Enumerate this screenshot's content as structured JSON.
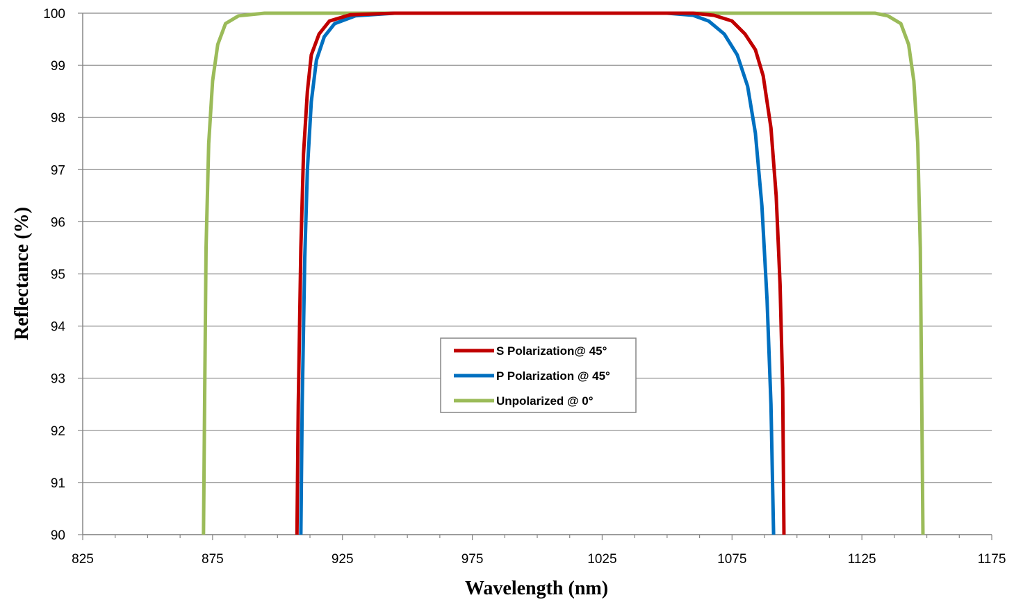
{
  "chart_data": {
    "type": "line",
    "title": "",
    "xlabel": "Wavelength (nm)",
    "ylabel": "Reflectance (%)",
    "xlim": [
      825,
      1175
    ],
    "ylim": [
      90,
      100
    ],
    "x_ticks": [
      "825",
      "875",
      "925",
      "975",
      "1025",
      "1075",
      "1125",
      "1175"
    ],
    "y_ticks": [
      "90",
      "91",
      "92",
      "93",
      "94",
      "95",
      "96",
      "97",
      "98",
      "99",
      "100"
    ],
    "grid": "horizontal",
    "legend_position": "center",
    "series": [
      {
        "name": "S Polarization@ 45°",
        "color": "#c00000",
        "points": [
          [
            907.5,
            90
          ],
          [
            908,
            92.5
          ],
          [
            909,
            95.5
          ],
          [
            910,
            97.3
          ],
          [
            911.5,
            98.5
          ],
          [
            913,
            99.2
          ],
          [
            916,
            99.6
          ],
          [
            920,
            99.85
          ],
          [
            928,
            99.97
          ],
          [
            945,
            100
          ],
          [
            1060,
            100
          ],
          [
            1068,
            99.96
          ],
          [
            1075,
            99.85
          ],
          [
            1080,
            99.6
          ],
          [
            1084,
            99.3
          ],
          [
            1087,
            98.8
          ],
          [
            1090,
            97.8
          ],
          [
            1092,
            96.5
          ],
          [
            1093.5,
            94.8
          ],
          [
            1094.5,
            92.8
          ],
          [
            1095,
            90
          ]
        ]
      },
      {
        "name": "P Polarization @ 45°",
        "color": "#0070c0",
        "points": [
          [
            909,
            90
          ],
          [
            909.5,
            92.5
          ],
          [
            910.5,
            95.3
          ],
          [
            911.5,
            97.0
          ],
          [
            913,
            98.3
          ],
          [
            915,
            99.1
          ],
          [
            918,
            99.55
          ],
          [
            922,
            99.8
          ],
          [
            930,
            99.95
          ],
          [
            945,
            100
          ],
          [
            1050,
            100
          ],
          [
            1060,
            99.96
          ],
          [
            1066,
            99.85
          ],
          [
            1072,
            99.6
          ],
          [
            1077,
            99.2
          ],
          [
            1081,
            98.6
          ],
          [
            1084,
            97.7
          ],
          [
            1086.5,
            96.3
          ],
          [
            1088.5,
            94.5
          ],
          [
            1090,
            92.5
          ],
          [
            1091,
            90
          ]
        ]
      },
      {
        "name": "Unpolarized @ 0°",
        "color": "#9bbb59",
        "points": [
          [
            871.5,
            90
          ],
          [
            872,
            92.8
          ],
          [
            872.5,
            95.5
          ],
          [
            873.5,
            97.5
          ],
          [
            875,
            98.7
          ],
          [
            877,
            99.4
          ],
          [
            880,
            99.8
          ],
          [
            885,
            99.95
          ],
          [
            895,
            100
          ],
          [
            1130,
            100
          ],
          [
            1135,
            99.95
          ],
          [
            1140,
            99.8
          ],
          [
            1143,
            99.4
          ],
          [
            1145,
            98.7
          ],
          [
            1146.5,
            97.5
          ],
          [
            1147.5,
            95.5
          ],
          [
            1148,
            92.8
          ],
          [
            1148.5,
            90
          ]
        ]
      }
    ]
  }
}
